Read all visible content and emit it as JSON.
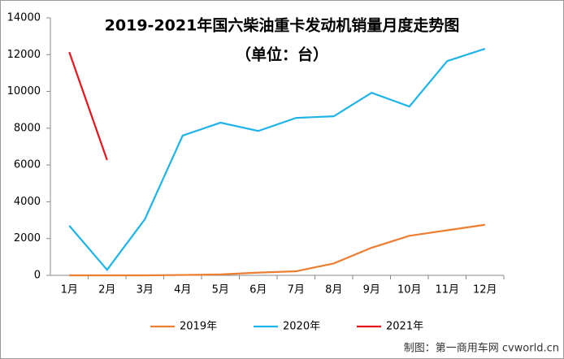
{
  "chart_data": {
    "type": "line",
    "title": "2019-2021年国六柴油重卡发动机销量月度走势图",
    "subtitle": "（单位：台）",
    "categories": [
      "1月",
      "2月",
      "3月",
      "4月",
      "5月",
      "6月",
      "7月",
      "8月",
      "9月",
      "10月",
      "11月",
      "12月"
    ],
    "series": [
      {
        "name": "2019年",
        "color": "#ed7d31",
        "values": [
          0,
          0,
          0,
          20,
          50,
          150,
          220,
          650,
          1500,
          2150,
          2450,
          2750
        ]
      },
      {
        "name": "2020年",
        "color": "#1fb3ea",
        "values": [
          2700,
          300,
          3050,
          7600,
          8300,
          7850,
          8560,
          8650,
          9930,
          9180,
          11650,
          12320
        ]
      },
      {
        "name": "2021年",
        "color": "#e8141b",
        "values": [
          12140,
          6270,
          null,
          null,
          null,
          null,
          null,
          null,
          null,
          null,
          null,
          null
        ]
      }
    ],
    "ylim": [
      0,
      14000
    ],
    "yticks": [
      0,
      2000,
      4000,
      6000,
      8000,
      10000,
      12000,
      14000
    ],
    "legend": "bottom",
    "footer": "制图：第一商用车网 cvworld.cn"
  }
}
